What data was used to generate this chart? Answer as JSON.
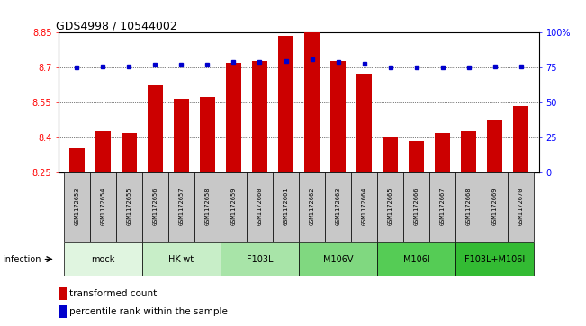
{
  "title": "GDS4998 / 10544002",
  "samples": [
    "GSM1172653",
    "GSM1172654",
    "GSM1172655",
    "GSM1172656",
    "GSM1172657",
    "GSM1172658",
    "GSM1172659",
    "GSM1172660",
    "GSM1172661",
    "GSM1172662",
    "GSM1172663",
    "GSM1172664",
    "GSM1172665",
    "GSM1172666",
    "GSM1172667",
    "GSM1172668",
    "GSM1172669",
    "GSM1172670"
  ],
  "bar_values": [
    8.355,
    8.43,
    8.42,
    8.625,
    8.565,
    8.575,
    8.72,
    8.73,
    8.835,
    8.855,
    8.73,
    8.675,
    8.4,
    8.385,
    8.42,
    8.43,
    8.475,
    8.535
  ],
  "percentile_values": [
    75,
    76,
    76,
    77,
    77,
    77,
    79,
    79,
    80,
    81,
    79,
    78,
    75,
    75,
    75,
    75,
    76,
    76
  ],
  "groups": [
    {
      "label": "mock",
      "start": 0,
      "end": 2,
      "color": "#e0f5e0"
    },
    {
      "label": "HK-wt",
      "start": 3,
      "end": 5,
      "color": "#c8eec8"
    },
    {
      "label": "F103L",
      "start": 6,
      "end": 8,
      "color": "#a8e4a8"
    },
    {
      "label": "M106V",
      "start": 9,
      "end": 11,
      "color": "#80d880"
    },
    {
      "label": "M106I",
      "start": 12,
      "end": 14,
      "color": "#55cc55"
    },
    {
      "label": "F103L+M106I",
      "start": 15,
      "end": 17,
      "color": "#33bb33"
    }
  ],
  "ymin": 8.25,
  "ymax": 8.85,
  "yticks": [
    8.25,
    8.4,
    8.55,
    8.7,
    8.85
  ],
  "ytick_labels": [
    "8.25",
    "8.4",
    "8.55",
    "8.7",
    "8.85"
  ],
  "right_yticks": [
    0,
    25,
    50,
    75,
    100
  ],
  "right_ytick_labels": [
    "0",
    "25",
    "50",
    "75",
    "100%"
  ],
  "bar_color": "#cc0000",
  "dot_color": "#0000cc",
  "bar_width": 0.6,
  "infection_label": "infection",
  "legend_bar_label": "transformed count",
  "legend_dot_label": "percentile rank within the sample",
  "sample_box_color": "#c8c8c8",
  "fig_width": 6.51,
  "fig_height": 3.63,
  "dpi": 100
}
